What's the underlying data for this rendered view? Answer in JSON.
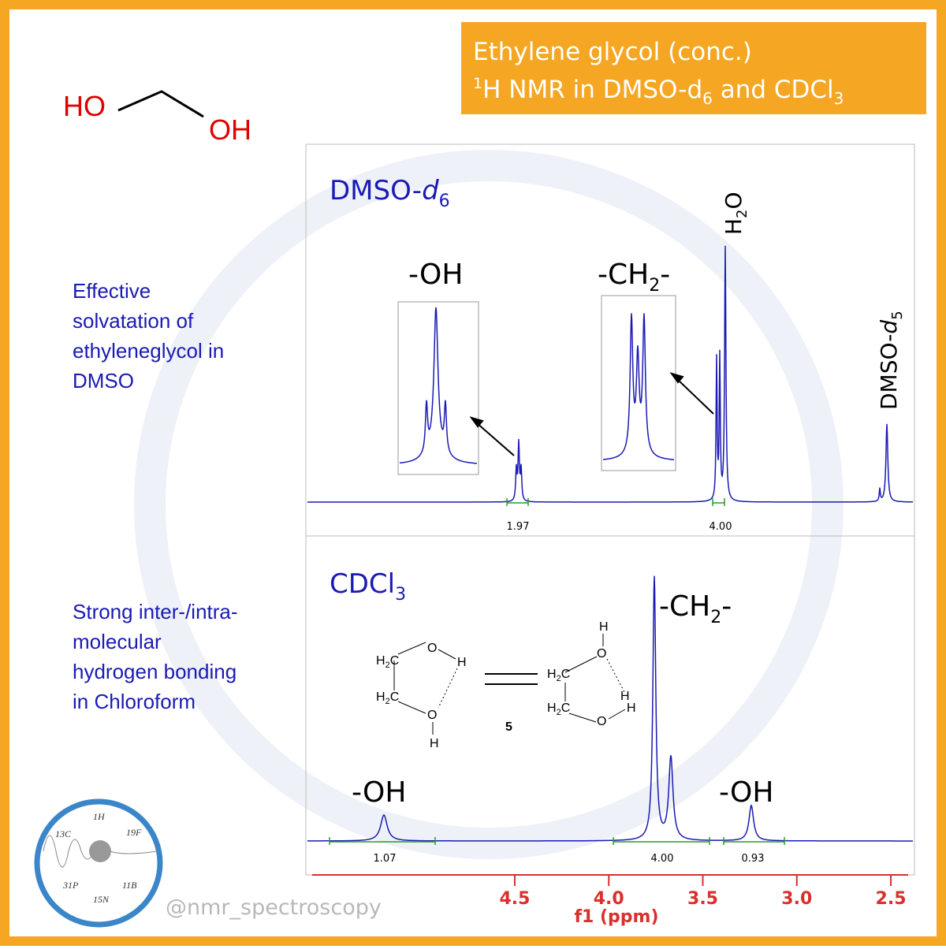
{
  "header": {
    "line1": "Ethylene glycol (conc.)",
    "line2": {
      "sup": "1",
      "a": "H NMR in DMSO-d",
      "sub1": "6",
      "b": " and CDCl",
      "sub2": "3"
    }
  },
  "molecule": {
    "left": "HO",
    "right": "OH"
  },
  "notes": [
    {
      "lines": [
        "Effective",
        "solvatation of",
        "ethyleneglycol in",
        "DMSO"
      ]
    },
    {
      "lines": [
        "Strong inter-/intra-",
        "molecular",
        "hydrogen bonding",
        "in Chloroform"
      ]
    }
  ],
  "panels": [
    {
      "solvent": {
        "a": "DMSO-",
        "i": "d",
        "sub": "6"
      },
      "labels": {
        "oh": "-OH",
        "ch2": {
          "a": "-CH",
          "sub": "2",
          "b": "-"
        },
        "water": {
          "a": "H",
          "sub": "2",
          "b": "O"
        },
        "residual": {
          "a": "DMSO-",
          "i": "d",
          "sub": "5"
        }
      },
      "integrals": [
        "1.97",
        "4.00"
      ]
    },
    {
      "solvent": {
        "a": "CDCl",
        "sub": "3"
      },
      "labels": {
        "ch2": {
          "a": "-CH",
          "sub": "2",
          "b": "-"
        },
        "oh_left": "-OH",
        "oh_right": "-OH"
      },
      "integrals": [
        "1.07",
        "4.00",
        "0.93"
      ],
      "structure": {
        "ch2": [
          "H",
          "2",
          "C"
        ],
        "o": "O",
        "h": "H",
        "number": "5"
      }
    }
  ],
  "chart_data": {
    "type": "axis",
    "xlabel": "f1 (ppm)",
    "xlim": [
      5.6,
      2.4
    ],
    "xticks": [
      4.5,
      {
        "value": 4,
        "label": "4.0"
      },
      3.5,
      {
        "value": 3,
        "label": "3.0"
      },
      2.5
    ]
  },
  "watermark": "@nmr_spectroscopy",
  "logo": [
    "1H",
    "13C",
    "19F",
    "31P",
    "15N",
    "11B"
  ]
}
